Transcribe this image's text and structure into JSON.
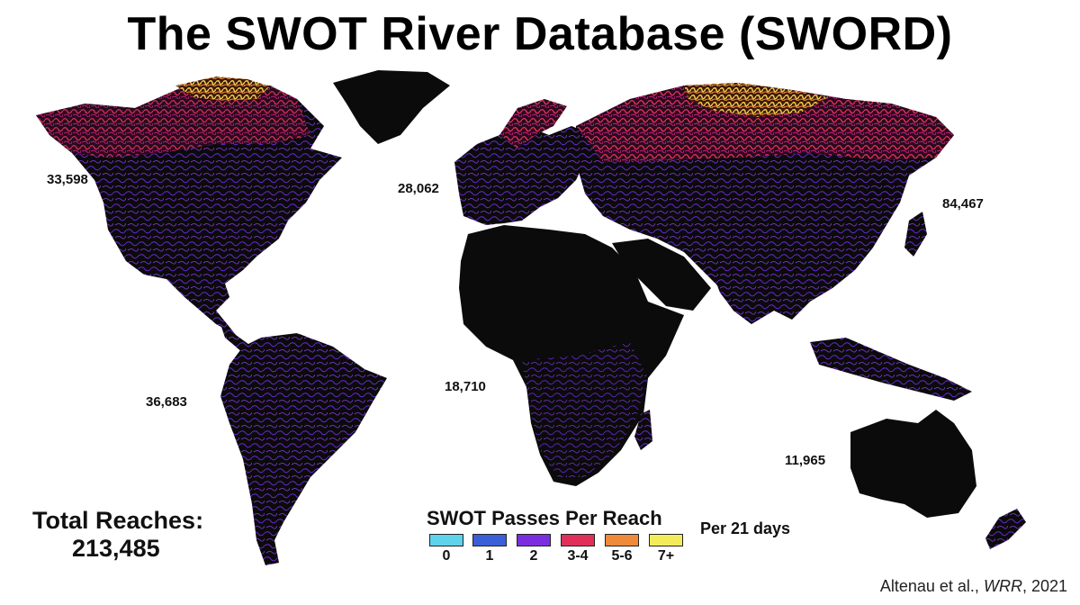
{
  "title": "The SWOT River Database (SWORD)",
  "regions": [
    {
      "name": "north-america",
      "count": "33,598"
    },
    {
      "name": "europe",
      "count": "28,062"
    },
    {
      "name": "asia",
      "count": "84,467"
    },
    {
      "name": "south-america",
      "count": "36,683"
    },
    {
      "name": "africa",
      "count": "18,710"
    },
    {
      "name": "oceania",
      "count": "11,965"
    }
  ],
  "total": {
    "label": "Total Reaches:",
    "value": "213,485"
  },
  "legend": {
    "title": "SWOT Passes Per Reach",
    "subtitle": "Per 21 days",
    "items": [
      {
        "label": "0",
        "color": "#5fd3ea"
      },
      {
        "label": "1",
        "color": "#3b5fd6"
      },
      {
        "label": "2",
        "color": "#7b2ee0"
      },
      {
        "label": "3-4",
        "color": "#e0305a"
      },
      {
        "label": "5-6",
        "color": "#ee8a3a"
      },
      {
        "label": "7+",
        "color": "#f3ec5a"
      }
    ]
  },
  "citation": {
    "authors": "Altenau et al.,",
    "journal": "WRR",
    "year": ", 2021"
  },
  "colors": {
    "land": "#0b0b0b",
    "river_low": "#7b2ee0",
    "river_mid": "#e0305a",
    "river_high": "#f3ec5a"
  }
}
